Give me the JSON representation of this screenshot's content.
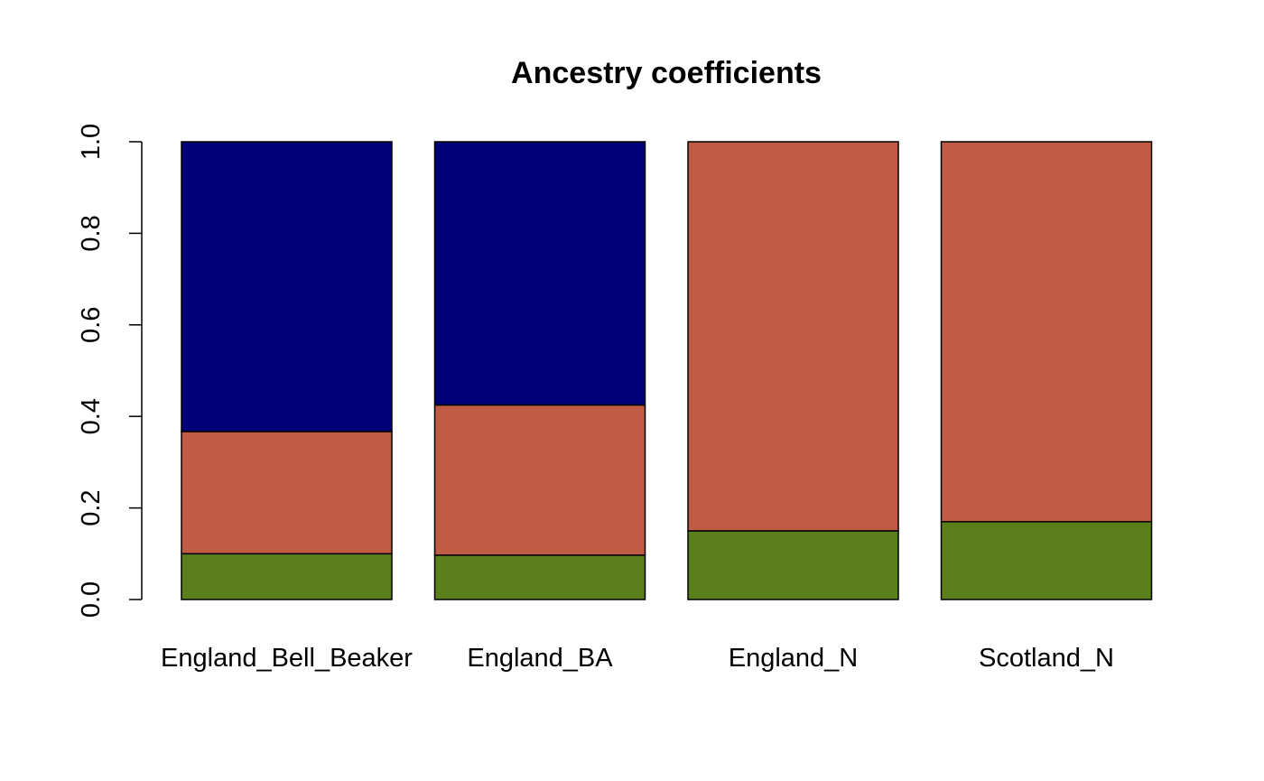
{
  "chart_data": {
    "type": "bar",
    "stacked": true,
    "title": "Ancestry coefficients",
    "xlabel": "",
    "ylabel": "",
    "ylim": [
      0,
      1
    ],
    "yticks": [
      "0.0",
      "0.2",
      "0.4",
      "0.6",
      "0.8",
      "1.0"
    ],
    "categories": [
      "England_Bell_Beaker",
      "England_BA",
      "England_N",
      "Scotland_N"
    ],
    "series": [
      {
        "color": "#5b7f1b",
        "values": [
          0.1,
          0.097,
          0.15,
          0.17
        ]
      },
      {
        "color": "#c05c44",
        "values": [
          0.267,
          0.328,
          0.85,
          0.83
        ]
      },
      {
        "color": "#000078",
        "values": [
          0.633,
          0.575,
          0.0,
          0.0
        ]
      }
    ],
    "grid": false,
    "legend": "none"
  }
}
